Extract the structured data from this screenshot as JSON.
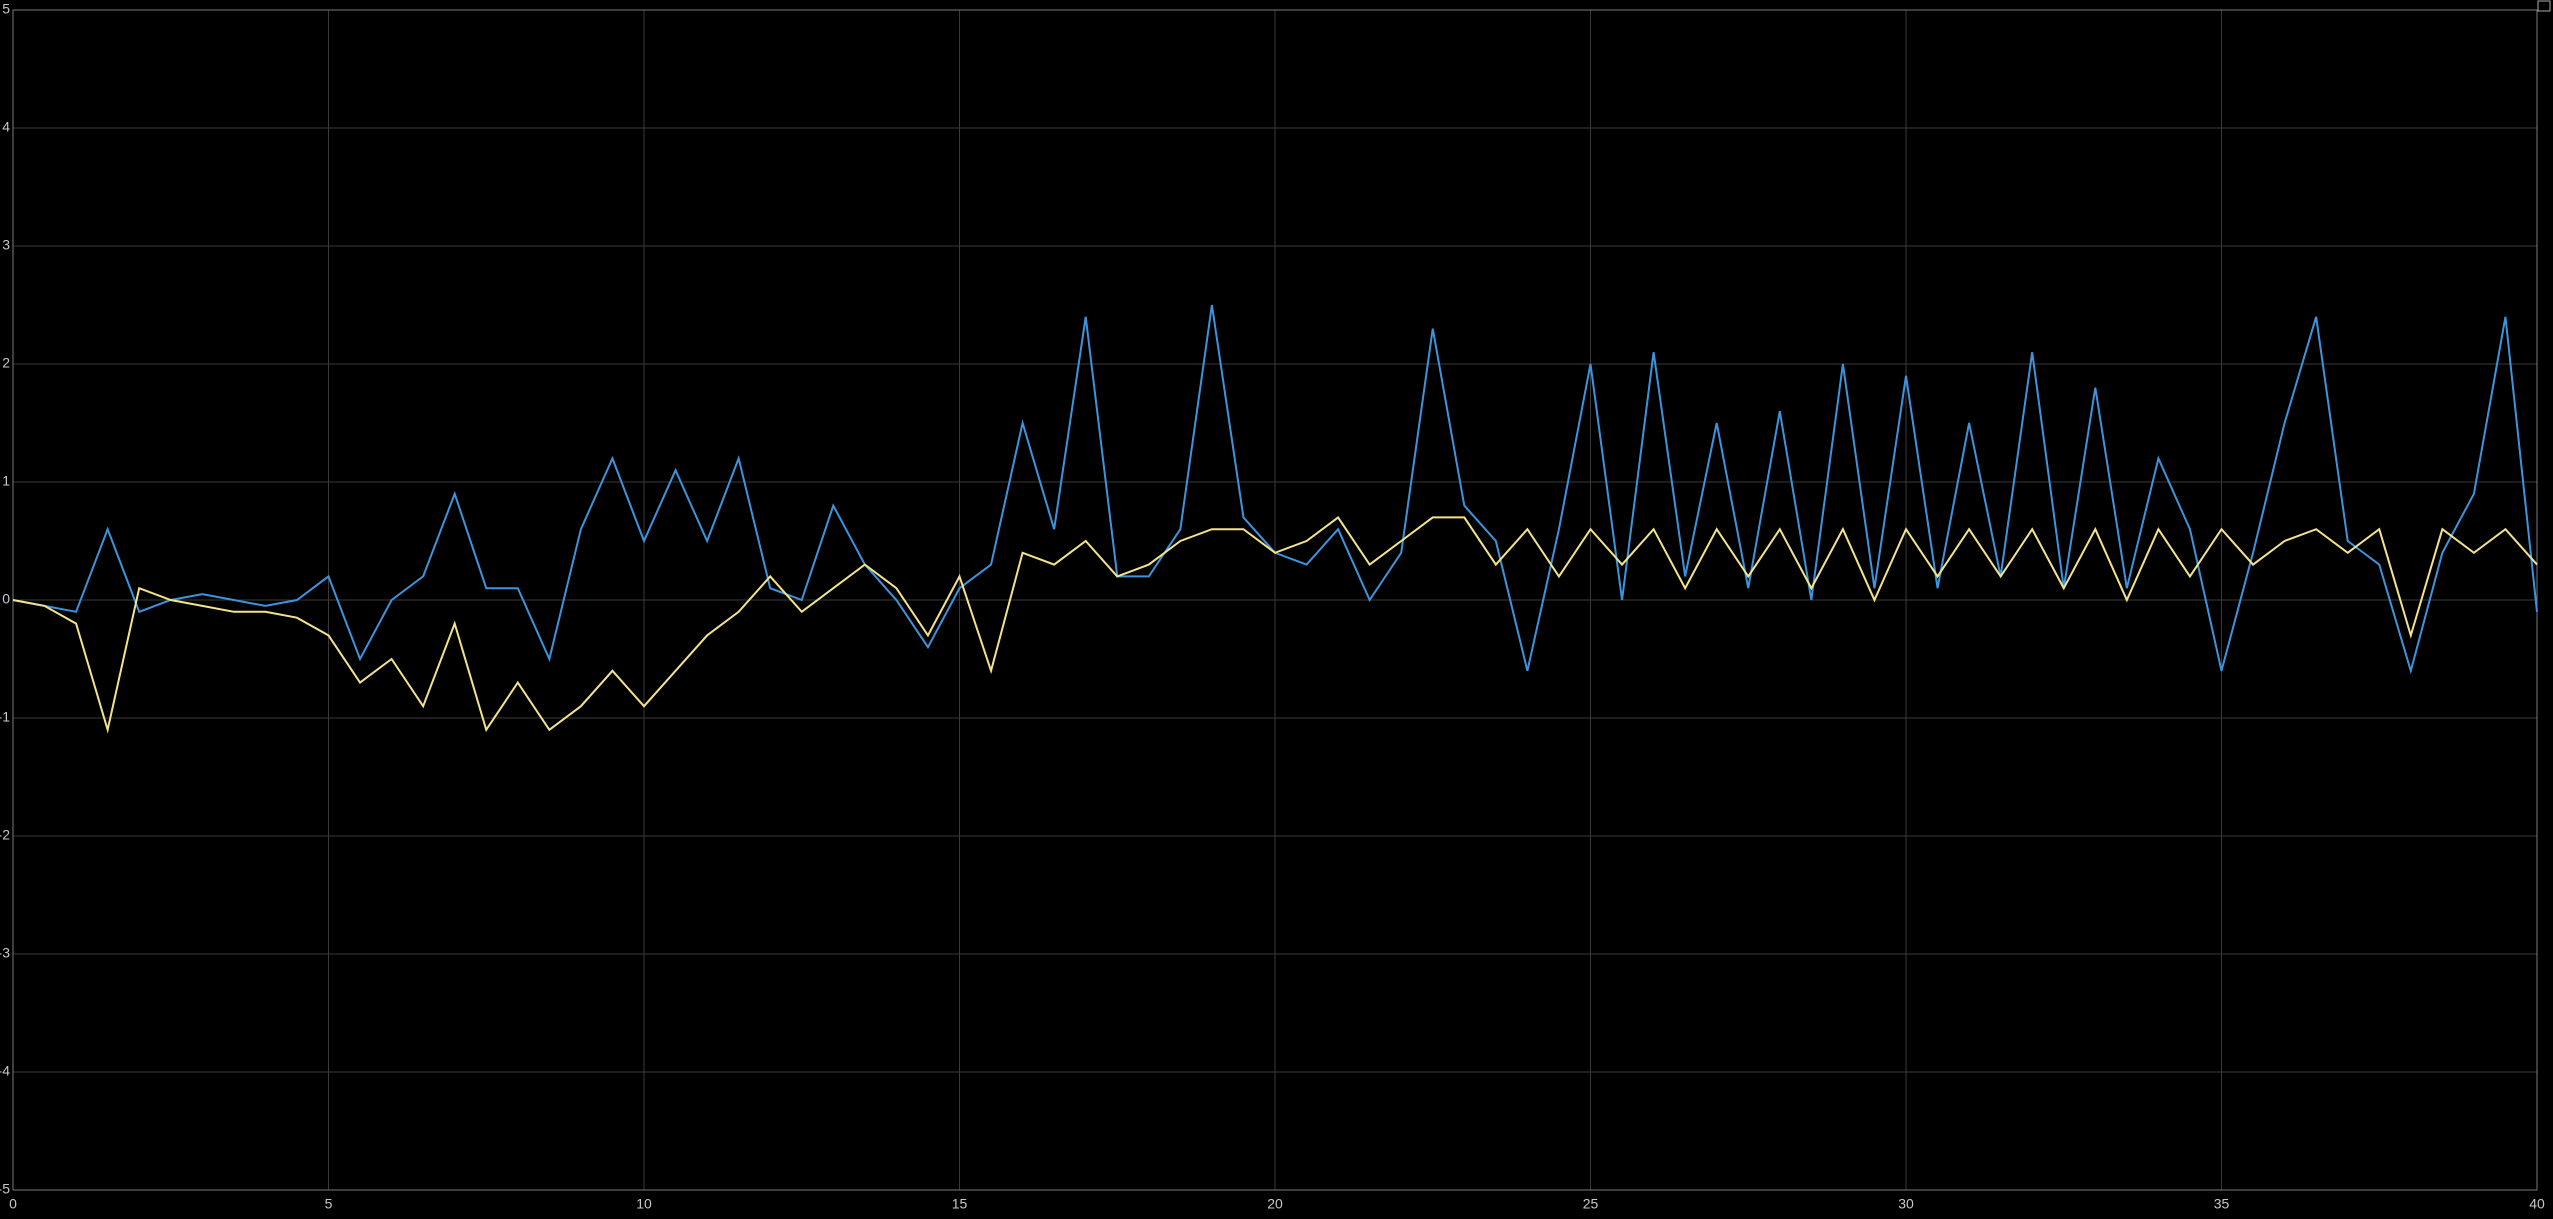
{
  "chart_data": {
    "type": "line",
    "x": [
      0,
      0.5,
      1,
      1.5,
      2,
      2.5,
      3,
      3.5,
      4,
      4.5,
      5,
      5.5,
      6,
      6.5,
      7,
      7.5,
      8,
      8.5,
      9,
      9.5,
      10,
      10.5,
      11,
      11.5,
      12,
      12.5,
      13,
      13.5,
      14,
      14.5,
      15,
      15.5,
      16,
      16.5,
      17,
      17.5,
      18,
      18.5,
      19,
      19.5,
      20,
      20.5,
      21,
      21.5,
      22,
      22.5,
      23,
      23.5,
      24,
      24.5,
      25,
      25.5,
      26,
      26.5,
      27,
      27.5,
      28,
      28.5,
      29,
      29.5,
      30,
      30.5,
      31,
      31.5,
      32,
      32.5,
      33,
      33.5,
      34,
      34.5,
      35,
      35.5,
      36,
      36.5,
      37,
      37.5,
      38,
      38.5,
      39,
      39.5,
      40
    ],
    "series": [
      {
        "color": "#3d94dc",
        "values": [
          0,
          -0.05,
          -0.1,
          0.6,
          -0.1,
          0,
          0.05,
          0,
          -0.05,
          0,
          0.2,
          -0.5,
          0,
          0.2,
          0.9,
          0.1,
          0.1,
          -0.5,
          0.6,
          1.2,
          0.5,
          1.1,
          0.5,
          1.2,
          0.1,
          0,
          0.8,
          0.3,
          0,
          -0.4,
          0.1,
          0.3,
          1.5,
          0.6,
          2.4,
          0.2,
          0.2,
          0.6,
          2.5,
          0.7,
          0.4,
          0.3,
          0.6,
          0,
          0.4,
          2.3,
          0.8,
          0.5,
          -0.6,
          0.6,
          2.0,
          0,
          2.1,
          0.2,
          1.5,
          0.1,
          1.6,
          0,
          2.0,
          0.1,
          1.9,
          0.1,
          1.5,
          0.2,
          2.1,
          0.1,
          1.8,
          0.1,
          1.2,
          0.6,
          -0.6,
          0.4,
          1.5,
          2.4,
          0.5,
          0.3,
          -0.6,
          0.4,
          0.9,
          2.4,
          -0.1
        ]
      },
      {
        "color": "#f3e38a",
        "values": [
          0,
          -0.05,
          -0.2,
          -1.1,
          0.1,
          0,
          -0.05,
          -0.1,
          -0.1,
          -0.15,
          -0.3,
          -0.7,
          -0.5,
          -0.9,
          -0.2,
          -1.1,
          -0.7,
          -1.1,
          -0.9,
          -0.6,
          -0.9,
          -0.6,
          -0.3,
          -0.1,
          0.2,
          -0.1,
          0.1,
          0.3,
          0.1,
          -0.3,
          0.2,
          -0.6,
          0.4,
          0.3,
          0.5,
          0.2,
          0.3,
          0.5,
          0.6,
          0.6,
          0.4,
          0.5,
          0.7,
          0.3,
          0.5,
          0.7,
          0.7,
          0.3,
          0.6,
          0.2,
          0.6,
          0.3,
          0.6,
          0.1,
          0.6,
          0.2,
          0.6,
          0.1,
          0.6,
          0,
          0.6,
          0.2,
          0.6,
          0.2,
          0.6,
          0.1,
          0.6,
          0,
          0.6,
          0.2,
          0.6,
          0.3,
          0.5,
          0.6,
          0.4,
          0.6,
          -0.3,
          0.6,
          0.4,
          0.6,
          0.3
        ]
      }
    ],
    "xlim": [
      0,
      40
    ],
    "xticks": [
      0,
      5,
      10,
      15,
      20,
      25,
      30,
      35,
      40
    ],
    "ylim": [
      -5,
      5
    ],
    "yticks": [
      -5,
      -4,
      -3,
      -2,
      -1,
      0,
      1,
      2,
      3,
      4,
      5
    ],
    "grid": true
  }
}
